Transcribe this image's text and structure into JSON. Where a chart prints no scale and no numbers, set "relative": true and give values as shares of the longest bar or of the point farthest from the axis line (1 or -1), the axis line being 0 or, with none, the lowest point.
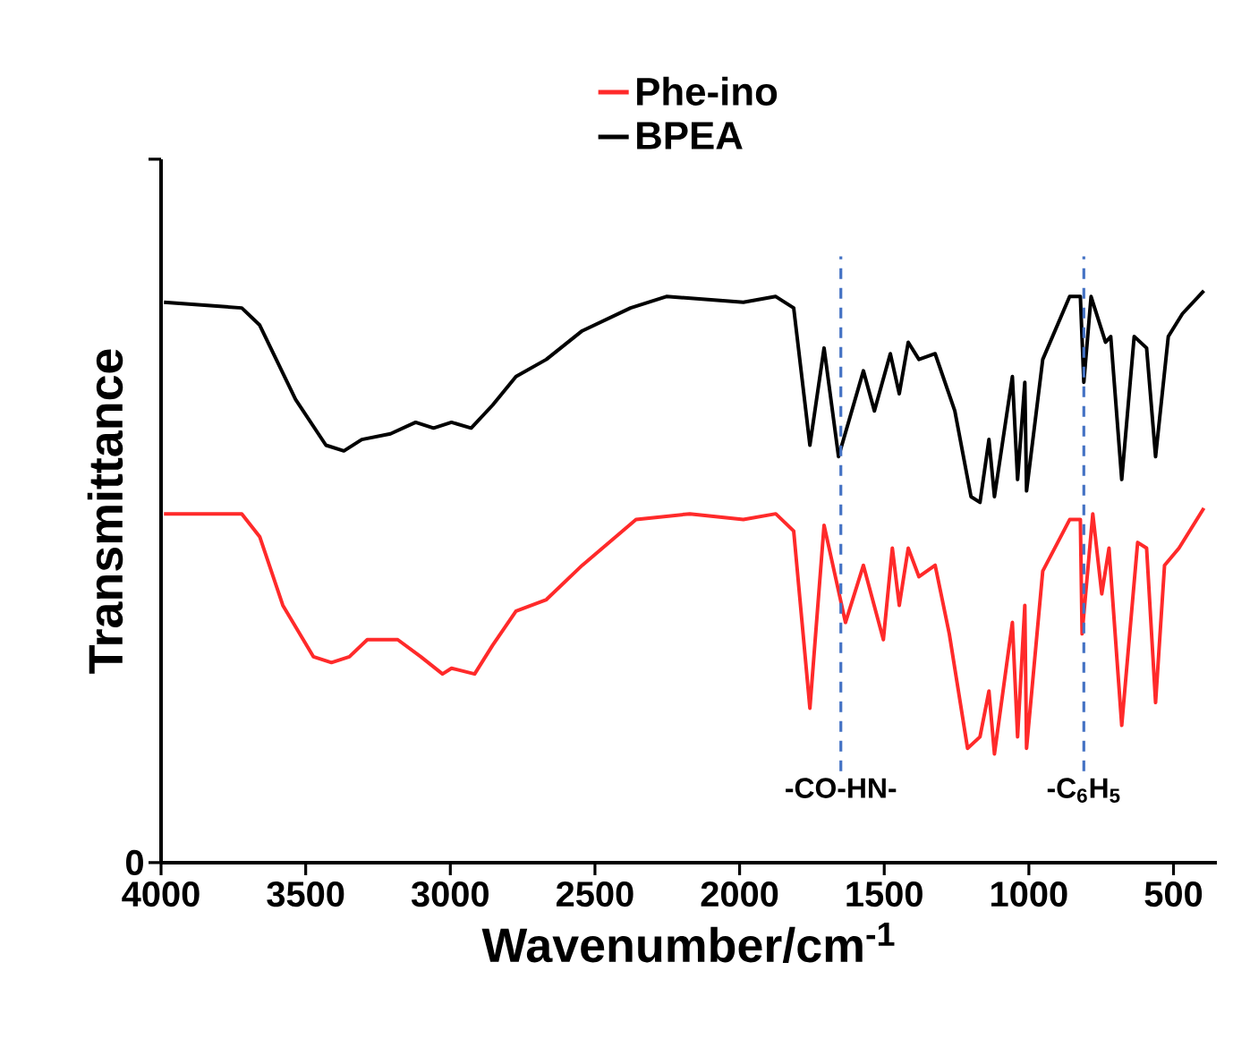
{
  "chart_data": {
    "type": "line",
    "xlabel": "Wavenumber/cm$^{-1}$",
    "ylabel": "Transmittance",
    "relative": true,
    "xlim": [
      4000,
      350
    ],
    "xticks": [
      4000,
      3500,
      3000,
      2500,
      2000,
      1500,
      1000,
      500
    ],
    "annotations": [
      "0"
    ],
    "legend": "top",
    "grid": false,
    "marker": "none",
    "line_style": "solid",
    "ref_lines": [
      {
        "axis": "x",
        "value": 1650,
        "label": "-CO-HN-",
        "color": "#4472c4",
        "line_style": "dashed"
      },
      {
        "axis": "x",
        "value": 810,
        "label": "-C$_{6}$H$_{5}$",
        "color": "#4472c4",
        "line_style": "dashed"
      }
    ],
    "series": [
      {
        "name": "Phe-ino",
        "color": "#ff2a2a",
        "x": [
          3990,
          3721,
          3659,
          3579,
          3473,
          3411,
          3349,
          3287,
          3182,
          3102,
          3027,
          2996,
          2916,
          2854,
          2773,
          2668,
          2544,
          2358,
          2172,
          1987,
          1875,
          1813,
          1757,
          1708,
          1634,
          1572,
          1503,
          1472,
          1448,
          1417,
          1380,
          1324,
          1275,
          1212,
          1169,
          1138,
          1119,
          1057,
          1039,
          1014,
          1008,
          952,
          859,
          822,
          816,
          779,
          748,
          723,
          679,
          624,
          593,
          562,
          531,
          481,
          395
        ],
        "values": [
          0.61,
          0.61,
          0.57,
          0.45,
          0.36,
          0.35,
          0.36,
          0.39,
          0.39,
          0.36,
          0.33,
          0.34,
          0.33,
          0.38,
          0.44,
          0.46,
          0.52,
          0.6,
          0.61,
          0.6,
          0.61,
          0.58,
          0.27,
          0.59,
          0.42,
          0.52,
          0.39,
          0.55,
          0.45,
          0.55,
          0.5,
          0.52,
          0.4,
          0.2,
          0.22,
          0.3,
          0.19,
          0.42,
          0.22,
          0.45,
          0.2,
          0.51,
          0.6,
          0.6,
          0.4,
          0.61,
          0.47,
          0.55,
          0.24,
          0.56,
          0.55,
          0.28,
          0.52,
          0.55,
          0.62
        ]
      },
      {
        "name": "BPEA",
        "color": "#000000",
        "x": [
          3990,
          3721,
          3659,
          3535,
          3430,
          3368,
          3306,
          3207,
          3120,
          3058,
          2996,
          2928,
          2854,
          2773,
          2668,
          2544,
          2377,
          2253,
          1987,
          1875,
          1813,
          1757,
          1708,
          1658,
          1572,
          1534,
          1479,
          1448,
          1417,
          1380,
          1324,
          1256,
          1200,
          1169,
          1138,
          1119,
          1057,
          1039,
          1014,
          1008,
          952,
          859,
          822,
          810,
          785,
          735,
          717,
          679,
          636,
          593,
          562,
          518,
          469,
          395
        ],
        "values": [
          0.98,
          0.97,
          0.94,
          0.81,
          0.73,
          0.72,
          0.74,
          0.75,
          0.77,
          0.76,
          0.77,
          0.76,
          0.8,
          0.85,
          0.88,
          0.93,
          0.97,
          0.99,
          0.98,
          0.99,
          0.97,
          0.73,
          0.9,
          0.71,
          0.86,
          0.79,
          0.89,
          0.82,
          0.91,
          0.88,
          0.89,
          0.79,
          0.64,
          0.63,
          0.74,
          0.64,
          0.85,
          0.67,
          0.84,
          0.65,
          0.88,
          0.99,
          0.99,
          0.84,
          0.99,
          0.91,
          0.92,
          0.67,
          0.92,
          0.9,
          0.71,
          0.92,
          0.96,
          1.0
        ]
      }
    ]
  }
}
